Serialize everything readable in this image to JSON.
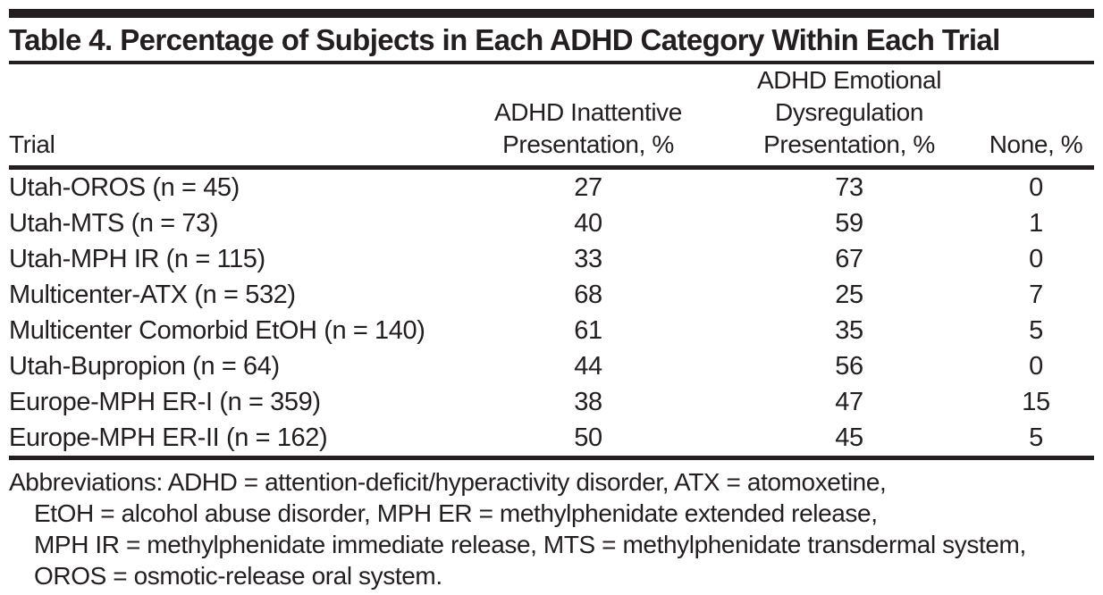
{
  "table": {
    "title": "Table 4. Percentage of Subjects in Each ADHD Category Within Each Trial",
    "headers": {
      "trial": "Trial",
      "inattentive": "ADHD Inattentive\nPresentation, %",
      "dysregulation": "ADHD Emotional\nDysregulation\nPresentation, %",
      "none": "None, %"
    },
    "rows": [
      {
        "trial": "Utah-OROS (n = 45)",
        "inattentive": "27",
        "dysregulation": "73",
        "none": "0"
      },
      {
        "trial": "Utah-MTS (n = 73)",
        "inattentive": "40",
        "dysregulation": "59",
        "none": "1"
      },
      {
        "trial": "Utah-MPH IR (n = 115)",
        "inattentive": "33",
        "dysregulation": "67",
        "none": "0"
      },
      {
        "trial": "Multicenter-ATX (n = 532)",
        "inattentive": "68",
        "dysregulation": "25",
        "none": "7"
      },
      {
        "trial": "Multicenter Comorbid EtOH (n = 140)",
        "inattentive": "61",
        "dysregulation": "35",
        "none": "5"
      },
      {
        "trial": "Utah-Bupropion (n = 64)",
        "inattentive": "44",
        "dysregulation": "56",
        "none": "0"
      },
      {
        "trial": "Europe-MPH ER-I (n = 359)",
        "inattentive": "38",
        "dysregulation": "47",
        "none": "15"
      },
      {
        "trial": "Europe-MPH ER-II (n = 162)",
        "inattentive": "50",
        "dysregulation": "45",
        "none": "5"
      }
    ]
  },
  "footnote": {
    "lines": [
      "Abbreviations: ADHD = attention-deficit/hyperactivity disorder, ATX = atomoxetine,",
      "EtOH = alcohol abuse disorder, MPH ER = methylphenidate extended release,",
      "MPH IR = methylphenidate immediate release, MTS = methylphenidate transdermal system,",
      "OROS = osmotic-release oral system."
    ]
  },
  "colors": {
    "ink": "#231f20",
    "background": "#ffffff"
  }
}
